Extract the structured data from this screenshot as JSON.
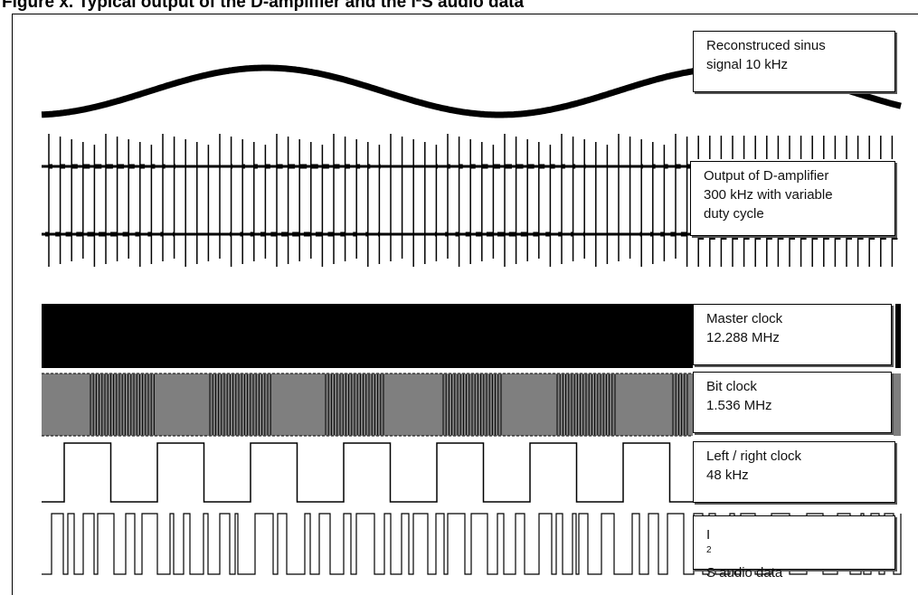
{
  "figure": {
    "caption": "Figure x. Typical output of the D-amplifier and the I²S audio data"
  },
  "signals": [
    {
      "label_lines": [
        "Reconstruced sinus",
        "signal 10 kHz"
      ]
    },
    {
      "label_lines": [
        "Output of D-amplifier",
        "300 kHz with variable",
        "duty cycle"
      ]
    },
    {
      "label_lines": [
        "Master clock",
        "12.288 MHz"
      ]
    },
    {
      "label_lines": [
        "Bit clock",
        "1.536 MHz"
      ]
    },
    {
      "label_lines": [
        "Left / right clock",
        "48 kHz"
      ]
    },
    {
      "label_prefix": "I",
      "label_sup": "2",
      "label_suffix": "S audio data"
    }
  ],
  "colors": {
    "trace": "#000000",
    "bitclock_fill": "#7f7f7f",
    "background": "#ffffff"
  }
}
